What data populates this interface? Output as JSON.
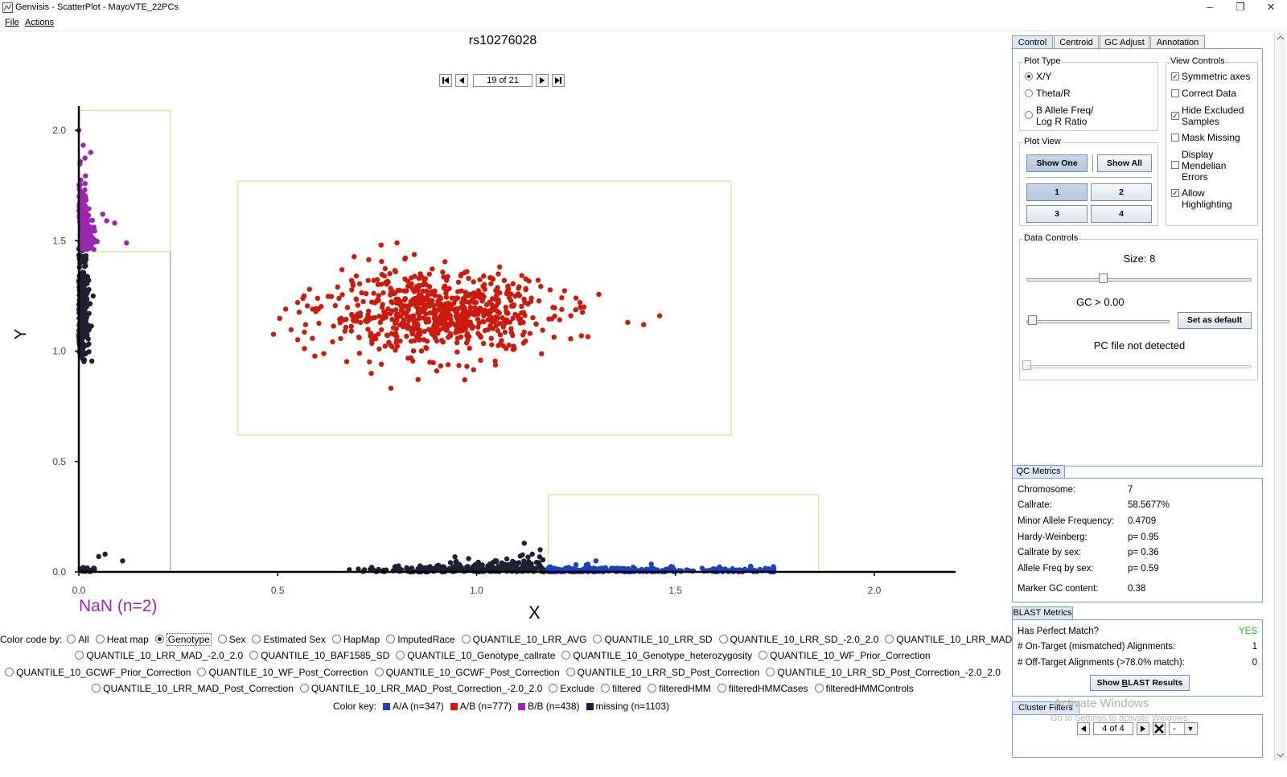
{
  "window": {
    "title": "Genvisis - ScatterPlot - MayoVTE_22PCs",
    "minimize": "–",
    "maximize": "❐",
    "close": "✕"
  },
  "menu": {
    "file": "File",
    "actions": "Actions"
  },
  "plot": {
    "marker": "rs10276028",
    "nav_position": "19 of 21",
    "xlabel": "X",
    "ylabel": "Y",
    "nan_label": "NaN (n=2)"
  },
  "chart_data": {
    "type": "scatter",
    "xlabel": "X",
    "ylabel": "Y",
    "xlim": [
      0.0,
      2.2
    ],
    "ylim": [
      0.0,
      2.1
    ],
    "xticks": [
      "0.0",
      "0.5",
      "1.0",
      "1.5",
      "2.0"
    ],
    "yticks": [
      "0.0",
      "0.5",
      "1.0",
      "1.5",
      "2.0"
    ],
    "series": [
      {
        "name": "A/A (n=347)",
        "color": "#1a3fbf",
        "cluster": {
          "x_range": [
            1.17,
            1.75
          ],
          "y_range": [
            0.0,
            0.06
          ]
        }
      },
      {
        "name": "A/B (n=777)",
        "color": "#cc1a0d",
        "cluster": {
          "x_center": 0.9,
          "y_center": 1.17,
          "x_range": [
            0.52,
            1.45
          ],
          "y_range": [
            0.87,
            1.49
          ]
        }
      },
      {
        "name": "B/B (n=438)",
        "color": "#9b27b0",
        "cluster": {
          "x_range": [
            0.0,
            0.06
          ],
          "y_range": [
            1.46,
            2.0
          ]
        }
      },
      {
        "name": "missing (n=1103)",
        "color": "#1f1f33",
        "cluster": {
          "x_range": [
            0.0,
            1.17
          ],
          "y_range": [
            0.0,
            1.47
          ]
        }
      }
    ],
    "cluster_filters": [
      {
        "x": [
          0.0,
          0.23
        ],
        "y": [
          0.0,
          1.45
        ],
        "color": "#8a8a8a"
      },
      {
        "x": [
          0.0,
          0.23
        ],
        "y": [
          1.45,
          2.09
        ],
        "color": "#c6e27a"
      },
      {
        "x": [
          0.4,
          1.64
        ],
        "y": [
          0.62,
          1.77
        ],
        "color": "#c6e27a"
      },
      {
        "x": [
          1.18,
          1.86
        ],
        "y": [
          0.0,
          0.35
        ],
        "color": "#c6e27a"
      }
    ]
  },
  "color_code": {
    "label": "Color code by:",
    "rows": [
      [
        "All",
        "Heat map",
        "Genotype",
        "Sex",
        "Estimated Sex",
        "HapMap",
        "ImputedRace",
        "QUANTILE_10_LRR_AVG",
        "QUANTILE_10_LRR_SD",
        "QUANTILE_10_LRR_SD_-2.0_2.0",
        "QUANTILE_10_LRR_MAD"
      ],
      [
        "QUANTILE_10_LRR_MAD_-2.0_2.0",
        "QUANTILE_10_BAF1585_SD",
        "QUANTILE_10_Genotype_callrate",
        "QUANTILE_10_Genotype_heterozygosity",
        "QUANTILE_10_WF_Prior_Correction"
      ],
      [
        "QUANTILE_10_GCWF_Prior_Correction",
        "QUANTILE_10_WF_Post_Correction",
        "QUANTILE_10_GCWF_Post_Correction",
        "QUANTILE_10_LRR_SD_Post_Correction",
        "QUANTILE_10_LRR_SD_Post_Correction_-2.0_2.0"
      ],
      [
        "QUANTILE_10_LRR_MAD_Post_Correction",
        "QUANTILE_10_LRR_MAD_Post_Correction_-2.0_2.0",
        "Exclude",
        "filtered",
        "filteredHMM",
        "filteredHMMCases",
        "filteredHMMControls"
      ]
    ],
    "selected": "Genotype"
  },
  "color_key": {
    "label": "Color key:",
    "items": [
      {
        "label": "A/A (n=347)",
        "color": "#1a3fbf"
      },
      {
        "label": "A/B (n=777)",
        "color": "#cc1a0d"
      },
      {
        "label": "B/B (n=438)",
        "color": "#9b27b0"
      },
      {
        "label": "missing (n=1103)",
        "color": "#1f1f33"
      }
    ]
  },
  "tabs": [
    "Control",
    "Centroid",
    "GC Adjust",
    "Annotation"
  ],
  "plot_type": {
    "title": "Plot Type",
    "options": [
      "X/Y",
      "Theta/R",
      "B Allele Freq/",
      "Log R Ratio"
    ],
    "selected": "X/Y"
  },
  "view_controls": {
    "title": "View Controls",
    "items": [
      {
        "label": "Symmetric axes",
        "checked": true
      },
      {
        "label": "Correct Data",
        "checked": false
      },
      {
        "label": "Hide Excluded",
        "label2": "Samples",
        "checked": true
      },
      {
        "label": "Mask Missing",
        "checked": false
      },
      {
        "label": "Display",
        "label2": "Mendelian",
        "label3": "Errors",
        "checked": false
      },
      {
        "label": "Allow Highlighting",
        "checked": true
      }
    ]
  },
  "plot_view": {
    "title": "Plot View",
    "show_one": "Show One",
    "show_all": "Show All",
    "buttons": [
      "1",
      "2",
      "3",
      "4"
    ]
  },
  "data_controls": {
    "title": "Data Controls",
    "size_label": "Size: 8",
    "gc_label": "GC > 0.00",
    "set_default": "Set as default",
    "pc_label": "PC file not detected"
  },
  "qc_metrics": {
    "title": "QC Metrics",
    "rows": [
      {
        "label": "Chromosome:",
        "value": "7"
      },
      {
        "label": "Callrate:",
        "value": "58.5677%"
      },
      {
        "label": "Minor Allele Frequency:",
        "value": "0.4709"
      },
      {
        "label": "Hardy-Weinberg:",
        "value": "p= 0.95"
      },
      {
        "label": "Callrate by sex:",
        "value": "p= 0.36"
      },
      {
        "label": "Allele Freq by sex:",
        "value": "p= 0.59"
      },
      {
        "label": "Marker GC content:",
        "value": "0.38"
      }
    ]
  },
  "blast_metrics": {
    "title": "BLAST Metrics",
    "rows": [
      {
        "label": "Has Perfect Match?",
        "value": "YES",
        "color": "#1fb81f"
      },
      {
        "label": "# On-Target (mismatched) Alignments:",
        "value": "1"
      },
      {
        "label": "# Off-Target Alignments (>78.0% match):",
        "value": "0"
      }
    ],
    "button_pre": "Show ",
    "button_u": "B",
    "button_post": "LAST Results"
  },
  "cluster_filters": {
    "title": "Cluster Filters",
    "position": "4 of 4",
    "dropdown": "-"
  },
  "watermark": {
    "line1": "Activate Windows",
    "line2": "Go to Settings to activate Windows."
  }
}
